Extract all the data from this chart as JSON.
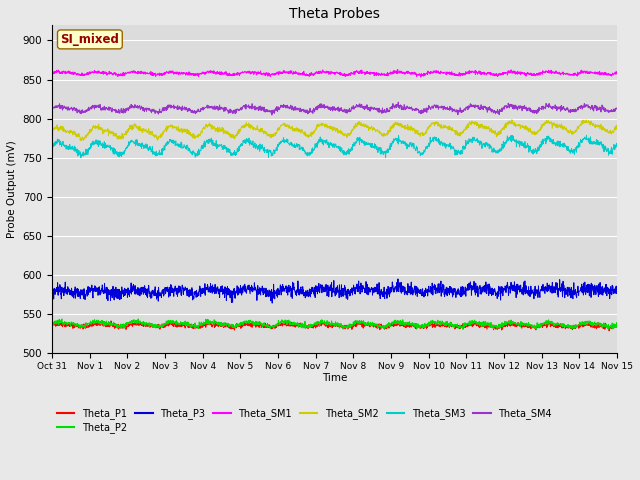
{
  "title": "Theta Probes",
  "xlabel": "Time",
  "ylabel": "Probe Output (mV)",
  "ylim": [
    500,
    920
  ],
  "yticks": [
    500,
    550,
    600,
    650,
    700,
    750,
    800,
    850,
    900
  ],
  "xtick_labels": [
    "Oct 31",
    "Nov 1",
    "Nov 2",
    "Nov 3",
    "Nov 4",
    "Nov 5",
    "Nov 6",
    "Nov 7",
    "Nov 8",
    "Nov 9",
    "Nov 10",
    "Nov 11",
    "Nov 12",
    "Nov 13",
    "Nov 14",
    "Nov 15"
  ],
  "bg_color": "#dcdcdc",
  "fig_bg_color": "#e8e8e8",
  "annotation_text": "SI_mixed",
  "annotation_bg": "#ffffcc",
  "annotation_border": "#996600",
  "annotation_text_color": "#990000",
  "series": {
    "Theta_P1": {
      "color": "#ff0000",
      "base": 535,
      "amp": 1.5,
      "noise": 1.5,
      "trend": -1
    },
    "Theta_P2": {
      "color": "#00dd00",
      "base": 537,
      "amp": 2.5,
      "noise": 1.5,
      "trend": -1
    },
    "Theta_P3": {
      "color": "#0000dd",
      "base": 578,
      "amp": 2.5,
      "noise": 4,
      "trend": 3
    },
    "Theta_SM1": {
      "color": "#ff00ff",
      "base": 858,
      "amp": 1.5,
      "noise": 1,
      "trend": 0
    },
    "Theta_SM2": {
      "color": "#cccc00",
      "base": 782,
      "amp": 6,
      "noise": 1.5,
      "trend": 8
    },
    "Theta_SM3": {
      "color": "#00cccc",
      "base": 762,
      "amp": 7,
      "noise": 2,
      "trend": 5
    },
    "Theta_SM4": {
      "color": "#9933cc",
      "base": 812,
      "amp": 3,
      "noise": 1.5,
      "trend": 1
    }
  },
  "n_points": 2000,
  "legend_order": [
    "Theta_P1",
    "Theta_P2",
    "Theta_P3",
    "Theta_SM1",
    "Theta_SM2",
    "Theta_SM3",
    "Theta_SM4"
  ]
}
